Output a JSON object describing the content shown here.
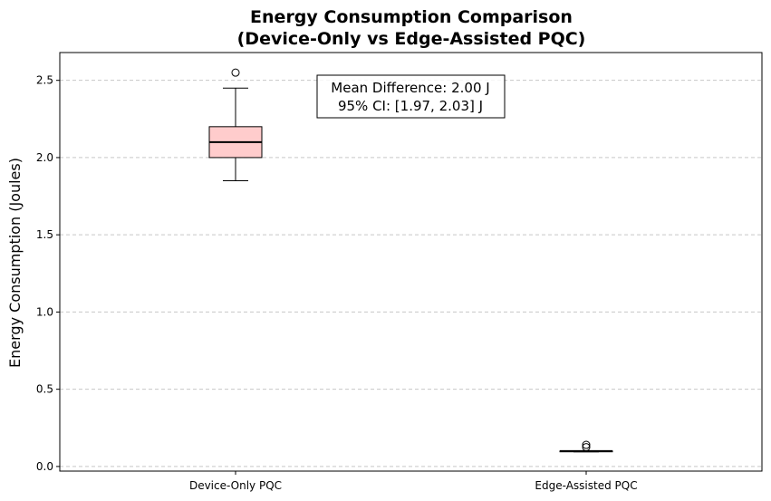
{
  "chart_data": {
    "type": "box",
    "title_line1": "Energy Consumption Comparison",
    "title_line2": "(Device-Only vs Edge-Assisted PQC)",
    "xlabel": "",
    "ylabel": "Energy Consumption (Joules)",
    "ylim": [
      -0.03,
      2.68
    ],
    "yticks": [
      0.0,
      0.5,
      1.0,
      1.5,
      2.0,
      2.5
    ],
    "ytick_labels": [
      "0.0",
      "0.5",
      "1.0",
      "1.5",
      "2.0",
      "2.5"
    ],
    "grid": "y-dashed",
    "categories": [
      "Device-Only PQC",
      "Edge-Assisted PQC"
    ],
    "boxes": [
      {
        "category": "Device-Only PQC",
        "whisker_low": 1.85,
        "q1": 2.0,
        "median": 2.1,
        "q3": 2.2,
        "whisker_high": 2.45,
        "outliers": [
          2.55
        ],
        "fill": "#ffcccc"
      },
      {
        "category": "Edge-Assisted PQC",
        "whisker_low": 0.095,
        "q1": 0.095,
        "median": 0.1,
        "q3": 0.1,
        "whisker_high": 0.1,
        "outliers": [
          0.125,
          0.14
        ],
        "fill": "#cce5ff"
      }
    ],
    "annotation_line1": "Mean Difference: 2.00 J",
    "annotation_line2": "95% CI: [1.97, 2.03] J"
  }
}
